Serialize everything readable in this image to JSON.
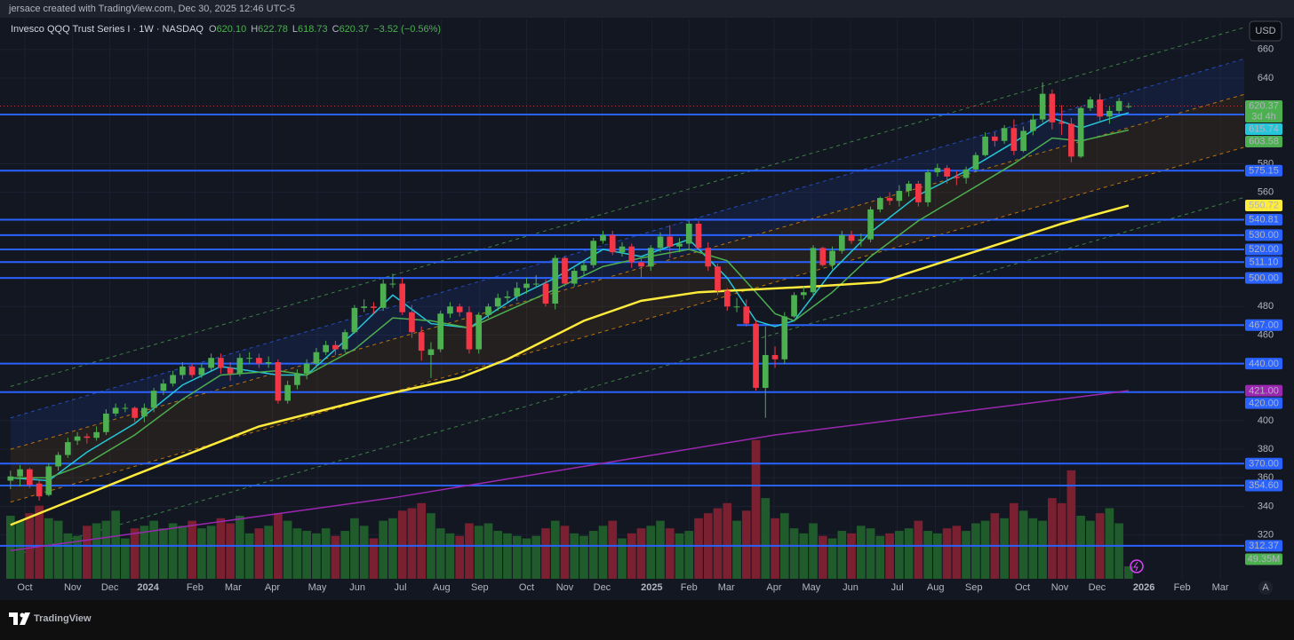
{
  "header": {
    "attribution": "jersace created with TradingView.com, Dec 30, 2025 12:46 UTC-5",
    "currency": "USD",
    "auto_button": "A",
    "brand": "TradingView"
  },
  "chart_data": {
    "type": "candlestick",
    "legend": {
      "name": "Invesco QQQ Trust Series I · 1W · NASDAQ",
      "keys": [
        "O",
        "H",
        "L",
        "C"
      ],
      "values": [
        "620.10",
        "622.78",
        "618.73",
        "620.37"
      ],
      "change": "−3.52 (−0.56%)"
    },
    "open": [
      358,
      361,
      366,
      356,
      348,
      368,
      376,
      386,
      389,
      388,
      392,
      405,
      409,
      409,
      403,
      409,
      421,
      426,
      432,
      438,
      432,
      437,
      444,
      437,
      433,
      444,
      444,
      440,
      441,
      414,
      425,
      433,
      440,
      448,
      453,
      450,
      462,
      479,
      480,
      479,
      496,
      496,
      476,
      462,
      446,
      450,
      475,
      480,
      476,
      450,
      474,
      480,
      486,
      487,
      493,
      496,
      496,
      482,
      514,
      496,
      505,
      509,
      526,
      530,
      518,
      522,
      511,
      508,
      521,
      529,
      522,
      524,
      538,
      521,
      508,
      491,
      480,
      480,
      468,
      423,
      446,
      443,
      473,
      488,
      490,
      521,
      509,
      519,
      530,
      526,
      527,
      548,
      556,
      554,
      561,
      566,
      553,
      574,
      577,
      571,
      570,
      576,
      586,
      599,
      596,
      605,
      589,
      603,
      611,
      629,
      609,
      608,
      585,
      619,
      625,
      613,
      617,
      620.1
    ],
    "high": [
      365,
      369,
      367,
      358,
      370,
      378,
      388,
      392,
      391,
      396,
      408,
      412,
      412,
      410,
      412,
      423,
      429,
      435,
      441,
      440,
      440,
      447,
      447,
      441,
      447,
      448,
      447,
      445,
      443,
      428,
      436,
      443,
      451,
      456,
      456,
      464,
      481,
      485,
      483,
      499,
      503,
      500,
      481,
      466,
      455,
      477,
      483,
      482,
      480,
      476,
      482,
      489,
      491,
      497,
      500,
      502,
      499,
      516,
      515,
      507,
      512,
      528,
      533,
      533,
      525,
      524,
      515,
      523,
      532,
      537,
      528,
      540,
      540,
      525,
      510,
      493,
      486,
      485,
      470,
      466,
      452,
      476,
      490,
      494,
      523,
      522,
      522,
      533,
      533,
      531,
      550,
      557,
      560,
      565,
      568,
      568,
      576,
      580,
      579,
      575,
      578,
      588,
      602,
      602,
      607,
      611,
      606,
      615,
      637,
      632,
      621,
      612,
      620,
      627,
      629,
      620,
      626,
      622.78
    ],
    "low": [
      352,
      354,
      353,
      344,
      347,
      365,
      374,
      383,
      384,
      386,
      390,
      403,
      406,
      399,
      399,
      406,
      418,
      424,
      429,
      430,
      430,
      435,
      433,
      428,
      431,
      440,
      437,
      437,
      412,
      412,
      422,
      429,
      437,
      446,
      446,
      448,
      461,
      476,
      475,
      477,
      493,
      474,
      458,
      442,
      430,
      448,
      472,
      473,
      447,
      447,
      472,
      477,
      483,
      484,
      489,
      493,
      480,
      478,
      494,
      494,
      502,
      507,
      524,
      516,
      515,
      507,
      500,
      505,
      518,
      514,
      518,
      520,
      520,
      505,
      488,
      477,
      476,
      466,
      421,
      402,
      437,
      440,
      472,
      485,
      487,
      508,
      506,
      517,
      524,
      522,
      525,
      546,
      551,
      550,
      557,
      550,
      550,
      571,
      566,
      565,
      566,
      574,
      585,
      592,
      594,
      586,
      588,
      600,
      609,
      604,
      600,
      581,
      584,
      617,
      610,
      608,
      615,
      618.73
    ],
    "close": [
      361,
      366,
      355,
      347,
      368,
      376,
      385,
      389,
      388,
      392,
      405,
      409,
      409,
      402,
      409,
      421,
      426,
      432,
      438,
      432,
      437,
      444,
      437,
      433,
      444,
      444,
      440,
      441,
      414,
      425,
      433,
      440,
      448,
      453,
      450,
      462,
      479,
      480,
      479,
      496,
      496,
      476,
      462,
      449,
      450,
      475,
      480,
      476,
      450,
      474,
      480,
      486,
      487,
      493,
      496,
      496,
      482,
      514,
      496,
      505,
      509,
      526,
      530,
      518,
      522,
      511,
      508,
      521,
      529,
      522,
      524,
      538,
      521,
      508,
      491,
      480,
      480,
      468,
      423,
      446,
      443,
      473,
      488,
      490,
      521,
      509,
      519,
      530,
      526,
      527,
      548,
      556,
      554,
      561,
      566,
      553,
      574,
      577,
      571,
      570,
      576,
      586,
      599,
      596,
      605,
      589,
      603,
      611,
      629,
      609,
      608,
      585,
      619,
      625,
      613,
      617,
      623.9,
      620.37
    ],
    "volume": [
      250,
      230,
      260,
      290,
      240,
      230,
      180,
      170,
      210,
      220,
      230,
      270,
      160,
      200,
      210,
      230,
      200,
      220,
      210,
      230,
      200,
      210,
      240,
      220,
      250,
      180,
      200,
      210,
      260,
      230,
      200,
      190,
      180,
      200,
      170,
      190,
      240,
      210,
      160,
      230,
      240,
      270,
      280,
      300,
      260,
      200,
      180,
      170,
      220,
      210,
      220,
      190,
      180,
      170,
      160,
      170,
      200,
      230,
      210,
      180,
      170,
      190,
      210,
      230,
      160,
      180,
      200,
      210,
      230,
      200,
      180,
      190,
      240,
      260,
      280,
      300,
      230,
      270,
      550,
      320,
      240,
      260,
      200,
      180,
      220,
      170,
      160,
      190,
      180,
      210,
      200,
      170,
      180,
      190,
      200,
      230,
      190,
      180,
      200,
      210,
      190,
      220,
      230,
      260,
      240,
      300,
      270,
      240,
      230,
      320,
      300,
      430,
      250,
      230,
      260,
      280,
      220,
      49.35
    ],
    "volume_label": "49.35M",
    "up_color": "#4caf50",
    "down_color": "#f23645",
    "volume_up_color": "#1f5b2b",
    "volume_down_color": "#7b2030",
    "xlim": [
      -1.1,
      129.1
    ],
    "ylim": [
      289.3,
      681
    ],
    "vlim": [
      0,
      2218
    ],
    "xticks": [
      {
        "value": 1.5,
        "label": "Oct"
      },
      {
        "value": 6.5,
        "label": "Nov"
      },
      {
        "value": 10.4,
        "label": "Dec"
      },
      {
        "value": 14.4,
        "label": "2024"
      },
      {
        "value": 19.3,
        "label": "Feb"
      },
      {
        "value": 23.3,
        "label": "Mar"
      },
      {
        "value": 27.4,
        "label": "Apr"
      },
      {
        "value": 32.1,
        "label": "May"
      },
      {
        "value": 36.3,
        "label": "Jun"
      },
      {
        "value": 40.8,
        "label": "Jul"
      },
      {
        "value": 45.1,
        "label": "Aug"
      },
      {
        "value": 49.1,
        "label": "Sep"
      },
      {
        "value": 54,
        "label": "Oct"
      },
      {
        "value": 58,
        "label": "Nov"
      },
      {
        "value": 61.9,
        "label": "Dec"
      },
      {
        "value": 67.1,
        "label": "2025"
      },
      {
        "value": 71,
        "label": "Feb"
      },
      {
        "value": 74.9,
        "label": "Mar"
      },
      {
        "value": 79.9,
        "label": "Apr"
      },
      {
        "value": 83.8,
        "label": "May"
      },
      {
        "value": 87.9,
        "label": "Jun"
      },
      {
        "value": 92.8,
        "label": "Jul"
      },
      {
        "value": 96.8,
        "label": "Aug"
      },
      {
        "value": 100.8,
        "label": "Sep"
      },
      {
        "value": 105.9,
        "label": "Oct"
      },
      {
        "value": 109.8,
        "label": "Nov"
      },
      {
        "value": 113.7,
        "label": "Dec"
      },
      {
        "value": 118.6,
        "label": "2026"
      },
      {
        "value": 122.6,
        "label": "Feb"
      },
      {
        "value": 126.6,
        "label": "Mar"
      }
    ],
    "yticks": [
      320,
      340,
      360,
      380,
      400,
      440,
      460,
      480,
      560,
      580,
      640,
      660
    ],
    "grid": true,
    "price_line": {
      "value": 620.37,
      "countdown": "3d 4h",
      "color": "#4caf50"
    },
    "level_color": "#2962ff",
    "levels": [
      {
        "value": 614.5
      },
      575.15,
      540.81,
      {
        "value": 530,
        "label": "530.00"
      },
      {
        "value": 520,
        "label": "520.00"
      },
      {
        "value": 511.1,
        "label": "511.10"
      },
      {
        "value": 500,
        "label": "500.00"
      },
      {
        "value": 467,
        "label": "467.00",
        "from": 76
      },
      {
        "value": 440,
        "label": "440.00"
      },
      {
        "value": 420,
        "label": "420.00"
      },
      {
        "value": 370,
        "label": "370.00"
      },
      {
        "value": 354.6,
        "label": "354.60"
      },
      312.37
    ],
    "indicators": [
      {
        "color": "#26c6da",
        "label_text": "#0c2a33",
        "x": [
          0,
          4,
          8,
          13,
          18,
          22,
          28,
          31,
          36,
          40,
          44,
          48,
          53,
          57,
          62,
          66,
          71,
          75,
          78,
          80,
          82,
          86,
          90,
          95,
          100,
          105,
          109,
          112,
          117
        ],
        "values": [
          360,
          358,
          378,
          398,
          425,
          438,
          432,
          432,
          462,
          488,
          468,
          465,
          487,
          500,
          520,
          515,
          527,
          500,
          470,
          466,
          470,
          505,
          532,
          558,
          575,
          595,
          612,
          605,
          615.74
        ]
      },
      {
        "color": "#4caf50",
        "label_text": "#0c2a12",
        "x": [
          0,
          4,
          8,
          13,
          18,
          22,
          28,
          31,
          36,
          40,
          44,
          48,
          53,
          57,
          62,
          66,
          71,
          75,
          78,
          80,
          82,
          86,
          90,
          95,
          100,
          105,
          109,
          112,
          117
        ],
        "values": [
          360,
          360,
          370,
          390,
          415,
          432,
          435,
          432,
          450,
          472,
          470,
          465,
          480,
          492,
          508,
          514,
          520,
          512,
          490,
          475,
          470,
          490,
          515,
          540,
          560,
          580,
          598,
          596,
          603.58
        ]
      },
      {
        "color": "#ffeb3b",
        "label_text": "#111111",
        "x": [
          0,
          13,
          26,
          39,
          47,
          52,
          60,
          66,
          72,
          78,
          84,
          91,
          97,
          104,
          110,
          117
        ],
        "values": [
          327,
          362,
          396,
          418,
          430,
          443,
          470,
          484,
          490,
          492,
          494,
          497,
          510,
          525,
          538,
          550.72
        ]
      },
      {
        "color": "#9c27b0",
        "label_text": "#ffffff",
        "x": [
          0,
          40,
          80,
          117
        ],
        "values": [
          309,
          346,
          390,
          421
        ],
        "last_label": "421.00"
      }
    ],
    "channel": [
      {
        "color": "#4caf50",
        "x": [
          0,
          134
        ],
        "values": [
          424,
          685
        ]
      },
      {
        "color": "#2962ff",
        "x": [
          0,
          134
        ],
        "values": [
          402,
          663
        ]
      },
      {
        "color": "#ff9800",
        "x": [
          0,
          134
        ],
        "values": [
          380,
          638
        ]
      },
      {
        "color": "#ff9800",
        "x": [
          0,
          134
        ],
        "values": [
          343,
          601
        ]
      },
      {
        "color": "#4caf50",
        "x": [
          0,
          134
        ],
        "values": [
          305,
          566
        ]
      }
    ]
  }
}
